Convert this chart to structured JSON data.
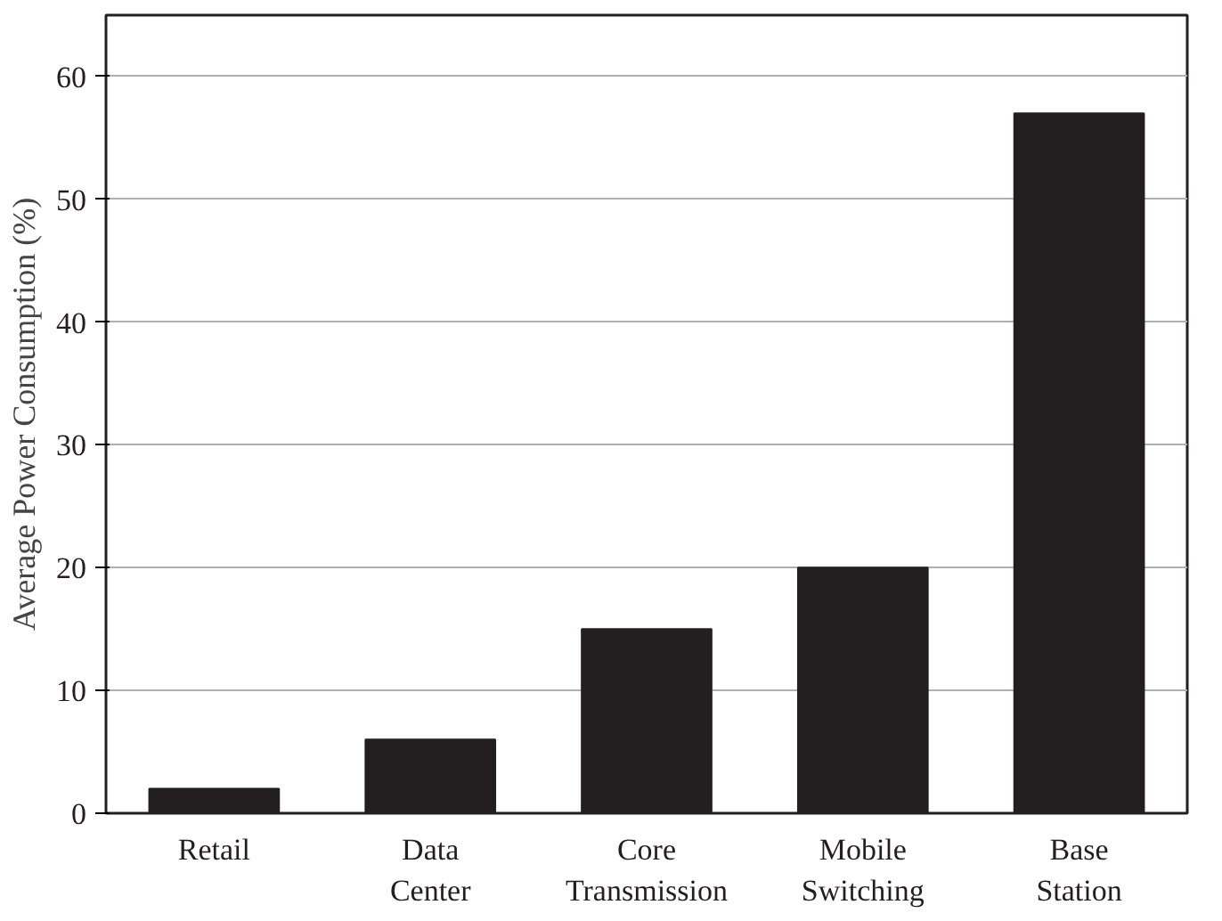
{
  "chart_data": {
    "type": "bar",
    "ylabel": "Average Power Consumption (%)",
    "categories": [
      "Retail",
      "Data Center",
      "Core Transmission",
      "Mobile Switching",
      "Base Station"
    ],
    "values": [
      2,
      6,
      15,
      20,
      57
    ],
    "color": "#231f20",
    "ylim": [
      0,
      65
    ],
    "yticks": [
      0,
      10,
      20,
      30,
      40,
      50,
      60
    ],
    "grid": "y"
  }
}
